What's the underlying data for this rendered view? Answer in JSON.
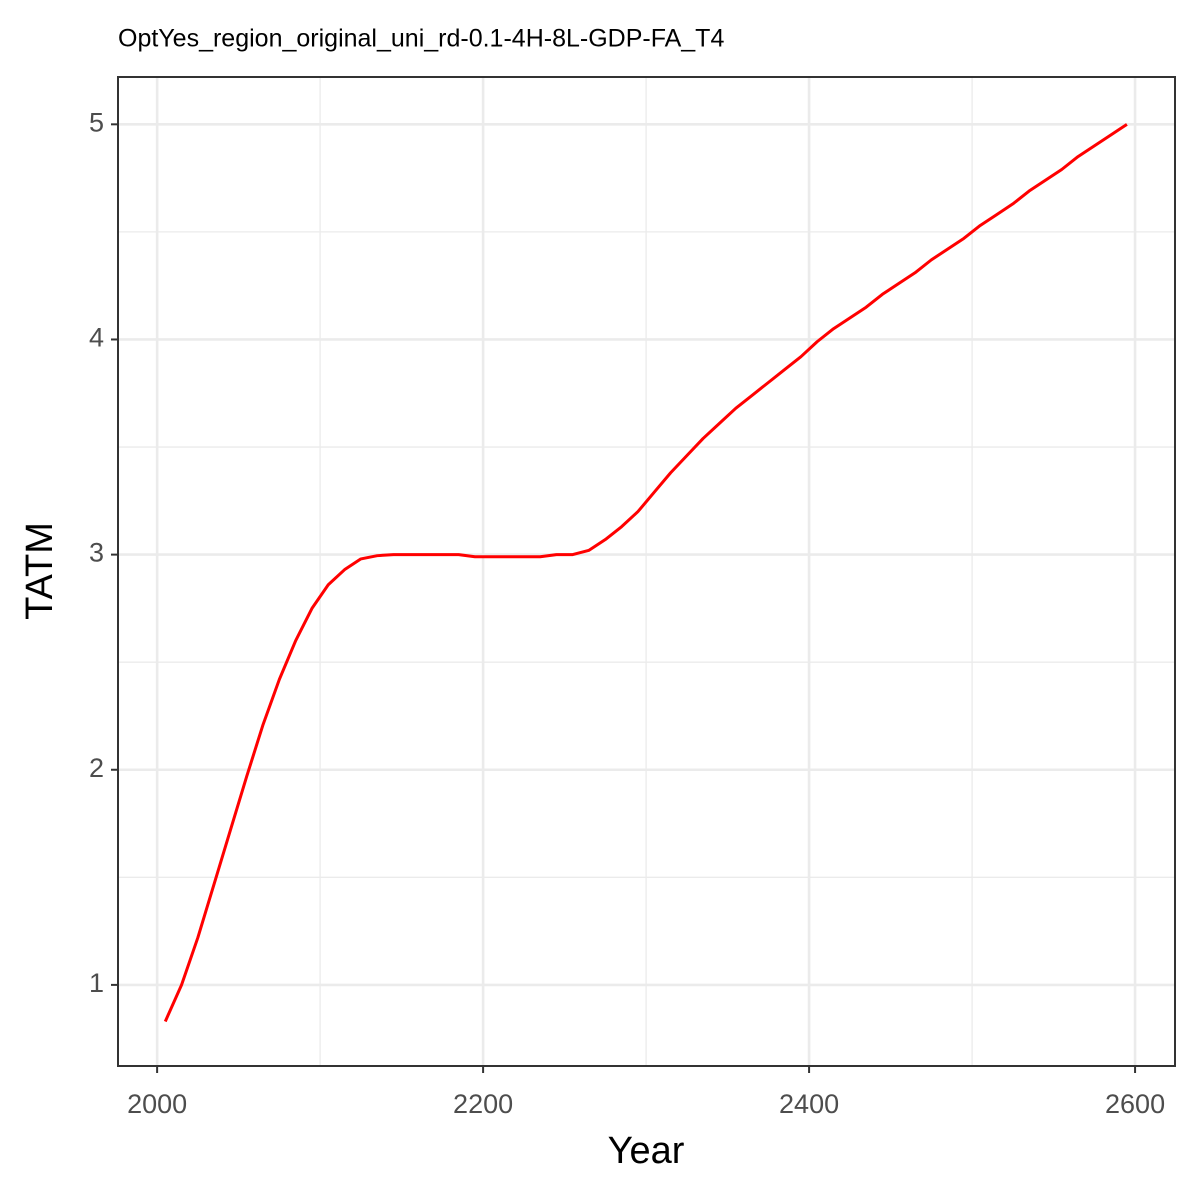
{
  "chart_data": {
    "type": "line",
    "title": "OptYes_region_original_uni_rd-0.1-4H-8L-GDP-FA_T4",
    "x_label": "Year",
    "y_label": "TATM",
    "x": [
      2005,
      2015,
      2025,
      2035,
      2045,
      2055,
      2065,
      2075,
      2085,
      2095,
      2105,
      2115,
      2125,
      2135,
      2145,
      2155,
      2165,
      2175,
      2185,
      2195,
      2205,
      2215,
      2225,
      2235,
      2245,
      2255,
      2265,
      2275,
      2285,
      2295,
      2305,
      2315,
      2325,
      2335,
      2345,
      2355,
      2365,
      2375,
      2385,
      2395,
      2405,
      2415,
      2425,
      2435,
      2445,
      2455,
      2465,
      2475,
      2485,
      2495,
      2505,
      2515,
      2525,
      2535,
      2545,
      2555,
      2565,
      2575,
      2585,
      2595
    ],
    "series": [
      {
        "name": "TATM",
        "color": "#ff0000",
        "values": [
          0.83,
          1.0,
          1.22,
          1.47,
          1.72,
          1.97,
          2.21,
          2.42,
          2.6,
          2.75,
          2.86,
          2.93,
          2.98,
          2.995,
          3.0,
          3.0,
          3.0,
          3.0,
          3.0,
          2.99,
          2.99,
          2.99,
          2.99,
          2.99,
          3.0,
          3.0,
          3.02,
          3.07,
          3.13,
          3.2,
          3.29,
          3.38,
          3.46,
          3.54,
          3.61,
          3.68,
          3.74,
          3.8,
          3.86,
          3.92,
          3.99,
          4.05,
          4.1,
          4.15,
          4.21,
          4.26,
          4.31,
          4.37,
          4.42,
          4.47,
          4.53,
          4.58,
          4.63,
          4.69,
          4.74,
          4.79,
          4.85,
          4.9,
          4.95,
          5.0
        ]
      }
    ],
    "xlim": [
      1976,
      2624.5
    ],
    "ylim": [
      0.623,
      5.22
    ],
    "xticks": [
      2000,
      2200,
      2400,
      2600
    ],
    "yticks": [
      1,
      2,
      3,
      4,
      5
    ],
    "grid": true
  }
}
